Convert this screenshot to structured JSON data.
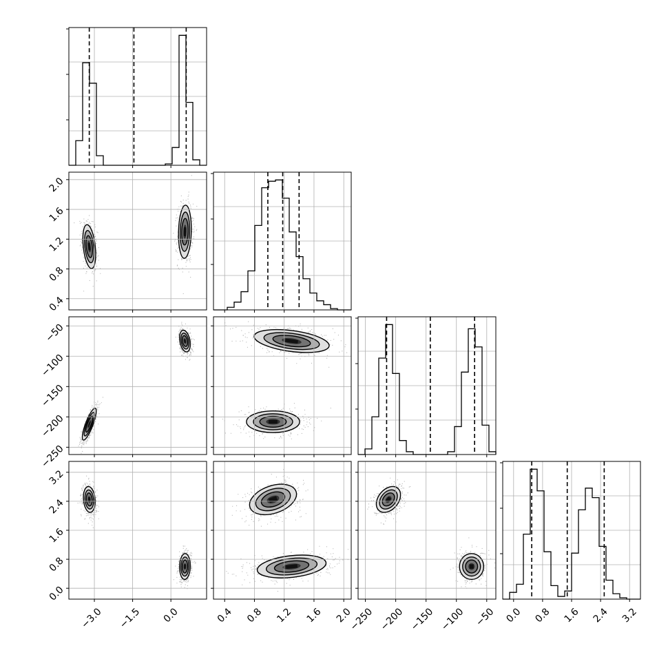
{
  "chart_data": {
    "type": "corner",
    "title": "",
    "grid": true,
    "dimensions": [
      {
        "range": [
          -4.0,
          1.4
        ],
        "ticks": [
          -3.0,
          -1.5,
          0.0
        ],
        "tick_labels": [
          "−3.0",
          "−1.5",
          "0.0"
        ],
        "quantiles": [
          -3.2,
          -1.45,
          0.6
        ],
        "hist": {
          "edges": [
            -4.0,
            -3.73,
            -3.46,
            -3.19,
            -2.92,
            -2.65,
            -2.38,
            -2.11,
            -1.84,
            -1.57,
            -1.3,
            -1.03,
            -0.76,
            -0.49,
            -0.22,
            0.05,
            0.32,
            0.59,
            0.86,
            1.13,
            1.4
          ],
          "counts": [
            0.0,
            0.18,
            0.75,
            0.6,
            0.07,
            0.0,
            0.0,
            0.0,
            0.0,
            0.0,
            0.0,
            0.0,
            0.0,
            0.0,
            0.01,
            0.13,
            0.95,
            0.46,
            0.04,
            0.0
          ]
        }
      },
      {
        "range": [
          0.25,
          2.1
        ],
        "ticks": [
          0.4,
          0.8,
          1.2,
          1.6,
          2.0
        ],
        "tick_labels": [
          "0.4",
          "0.8",
          "1.2",
          "1.6",
          "2.0"
        ],
        "quantiles": [
          0.98,
          1.18,
          1.4
        ],
        "hist": {
          "edges": [
            0.25,
            0.3425,
            0.435,
            0.5275,
            0.62,
            0.7125,
            0.805,
            0.8975,
            0.99,
            1.0825,
            1.175,
            1.2675,
            1.36,
            1.4525,
            1.545,
            1.6375,
            1.73,
            1.8225,
            1.915,
            2.0075,
            2.1
          ],
          "counts": [
            0.0,
            0.0,
            0.02,
            0.06,
            0.14,
            0.3,
            0.65,
            0.94,
            0.99,
            1.0,
            0.86,
            0.6,
            0.41,
            0.24,
            0.13,
            0.07,
            0.04,
            0.01,
            0.0,
            0.0
          ]
        }
      },
      {
        "range": [
          -262,
          -35
        ],
        "ticks": [
          -250,
          -200,
          -150,
          -100,
          -50
        ],
        "tick_labels": [
          "−250",
          "−200",
          "−150",
          "−100",
          "−50"
        ],
        "quantiles": [
          -215,
          -143,
          -70
        ],
        "hist": {
          "edges": [
            -262,
            -250.65,
            -239.3,
            -227.95,
            -216.6,
            -205.25,
            -193.9,
            -182.55,
            -171.2,
            -159.85,
            -148.5,
            -137.15,
            -125.8,
            -114.45,
            -103.1,
            -91.75,
            -80.4,
            -69.05,
            -57.7,
            -46.35,
            -35
          ],
          "counts": [
            0.0,
            0.04,
            0.27,
            0.69,
            0.93,
            0.58,
            0.1,
            0.02,
            0.0,
            0.0,
            0.0,
            0.0,
            0.0,
            0.02,
            0.2,
            0.59,
            0.9,
            0.77,
            0.21,
            0.02
          ]
        }
      },
      {
        "range": [
          -0.3,
          3.5
        ],
        "ticks": [
          0.0,
          0.8,
          1.6,
          2.4,
          3.2
        ],
        "tick_labels": [
          "0.0",
          "0.8",
          "1.6",
          "2.4",
          "3.2"
        ],
        "quantiles": [
          0.5,
          1.48,
          2.5
        ],
        "hist": {
          "edges": [
            -0.3,
            -0.11,
            0.08,
            0.27,
            0.46,
            0.65,
            0.84,
            1.03,
            1.22,
            1.41,
            1.6,
            1.79,
            1.98,
            2.17,
            2.36,
            2.55,
            2.74,
            2.93,
            3.12,
            3.31,
            3.5
          ],
          "counts": [
            0.0,
            0.05,
            0.11,
            0.48,
            0.96,
            0.8,
            0.35,
            0.1,
            0.02,
            0.06,
            0.34,
            0.66,
            0.82,
            0.75,
            0.39,
            0.14,
            0.04,
            0.01,
            0.0,
            0.0
          ]
        }
      }
    ],
    "pairs": [
      {
        "x_dim": 0,
        "y_dim": 1,
        "clusters": [
          {
            "center": [
              -3.2,
              1.1
            ],
            "sd": [
              0.12,
              0.14
            ],
            "rho": -0.35
          },
          {
            "center": [
              0.55,
              1.3
            ],
            "sd": [
              0.12,
              0.17
            ],
            "rho": 0.1
          }
        ]
      },
      {
        "x_dim": 0,
        "y_dim": 2,
        "clusters": [
          {
            "center": [
              -3.2,
              -212
            ],
            "sd": [
              0.13,
              12.5
            ],
            "rho": 0.82
          },
          {
            "center": [
              0.55,
              -75
            ],
            "sd": [
              0.1,
              8.5
            ],
            "rho": -0.3
          }
        ]
      },
      {
        "x_dim": 1,
        "y_dim": 2,
        "clusters": [
          {
            "center": [
              1.05,
              -208
            ],
            "sd": [
              0.17,
              8.5
            ],
            "rho": 0.0
          },
          {
            "center": [
              1.3,
              -75
            ],
            "sd": [
              0.24,
              9.0
            ],
            "rho": -0.4
          }
        ]
      },
      {
        "x_dim": 0,
        "y_dim": 3,
        "clusters": [
          {
            "center": [
              -3.2,
              2.45
            ],
            "sd": [
              0.11,
              0.17
            ],
            "rho": -0.15
          },
          {
            "center": [
              0.55,
              0.6
            ],
            "sd": [
              0.1,
              0.17
            ],
            "rho": 0.05
          }
        ]
      },
      {
        "x_dim": 1,
        "y_dim": 3,
        "clusters": [
          {
            "center": [
              1.05,
              2.45
            ],
            "sd": [
              0.15,
              0.2
            ],
            "rho": 0.35
          },
          {
            "center": [
              1.3,
              0.6
            ],
            "sd": [
              0.22,
              0.15
            ],
            "rho": 0.3
          }
        ]
      },
      {
        "x_dim": 2,
        "y_dim": 3,
        "clusters": [
          {
            "center": [
              -212,
              2.45
            ],
            "sd": [
              9.5,
              0.17
            ],
            "rho": 0.35
          },
          {
            "center": [
              -75,
              0.6
            ],
            "sd": [
              9.5,
              0.17
            ],
            "rho": 0.0
          }
        ]
      }
    ]
  }
}
